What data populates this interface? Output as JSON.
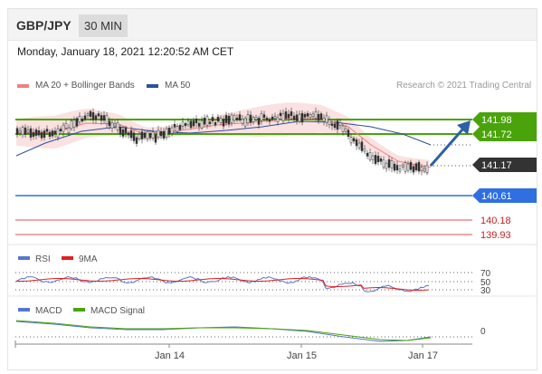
{
  "header": {
    "pair": "GBP/JPY",
    "timeframe": "30 MIN"
  },
  "date_text": "Monday, January 18, 2021 12:20:52 AM CET",
  "legend": {
    "ma20": "MA 20 + Bollinger Bands",
    "ma50": "MA 50",
    "credit": "Research © 2021 Trading Central",
    "rsi": "RSI",
    "rsi9": "9MA",
    "macd": "MACD",
    "macd_signal": "MACD Signal"
  },
  "colors": {
    "ma20": "#f08080",
    "ma50": "#2d4fa0",
    "green_level": "#4aa30a",
    "blue_level": "#2f6fe0",
    "red_level": "#e05050",
    "current": "#333333",
    "arrow": "#2f5fa8",
    "rsi": "#5577cc",
    "rsi9": "#e02020",
    "macd": "#5577cc",
    "macd_signal": "#4aa30a"
  },
  "price_levels": [
    {
      "label": "141.98",
      "kind": "green"
    },
    {
      "label": "141.72",
      "kind": "green"
    },
    {
      "label": "141.17",
      "kind": "current"
    },
    {
      "label": "140.61",
      "kind": "blue"
    },
    {
      "label": "140.18",
      "kind": "red"
    },
    {
      "label": "139.93",
      "kind": "red"
    }
  ],
  "rsi_levels": [
    "70",
    "50",
    "30"
  ],
  "macd_level": "0",
  "x_axis": [
    "Jan 14",
    "Jan 15",
    "Jan 17"
  ],
  "chart_data": [
    {
      "type": "line",
      "title": "GBP/JPY",
      "series": [
        {
          "name": "MA 20 + Bollinger Bands"
        },
        {
          "name": "MA 50"
        }
      ],
      "key_levels": [
        141.98,
        141.72,
        141.17,
        140.61,
        140.18,
        139.93
      ],
      "current_price": 141.17,
      "x_ticks": [
        "Jan 14",
        "Jan 15",
        "Jan 17"
      ]
    },
    {
      "type": "line",
      "series": [
        {
          "name": "RSI"
        },
        {
          "name": "9MA"
        }
      ],
      "levels": [
        70,
        50,
        30
      ]
    },
    {
      "type": "line",
      "series": [
        {
          "name": "MACD"
        },
        {
          "name": "MACD Signal"
        }
      ],
      "levels": [
        0
      ]
    }
  ]
}
